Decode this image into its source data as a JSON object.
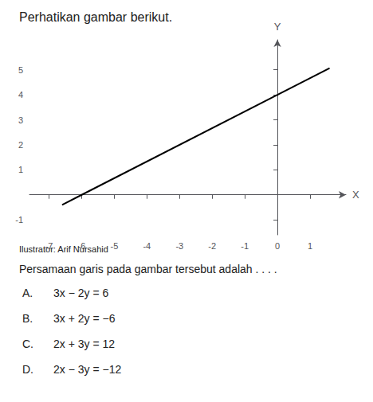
{
  "chart_data": {
    "type": "line",
    "title": "Perhatikan gambar berikut.",
    "x": [
      -6.6,
      -6,
      0,
      1.6
    ],
    "values": [
      -0.4,
      0,
      4,
      5.066666666666667
    ],
    "color": "#000000",
    "xlabel": "X",
    "ylabel": "Y",
    "xlim": [
      -7.6,
      2.1
    ],
    "ylim": [
      -1.6,
      6.2
    ],
    "xticks": [
      -7,
      -6,
      -5,
      -4,
      -3,
      -2,
      -1,
      0,
      1
    ],
    "yticks": [
      -1,
      1,
      2,
      3,
      4,
      5
    ],
    "grid": false,
    "annotations": [
      "Ilustrator: Arif Nursahid",
      "Persamaan garis pada gambar tersebut adalah . . . .",
      "A. 3x − 2y = 6",
      "B. 3x + 2y = −6",
      "C. 2x + 3y = 12",
      "D. 2x − 3y = −12"
    ]
  }
}
